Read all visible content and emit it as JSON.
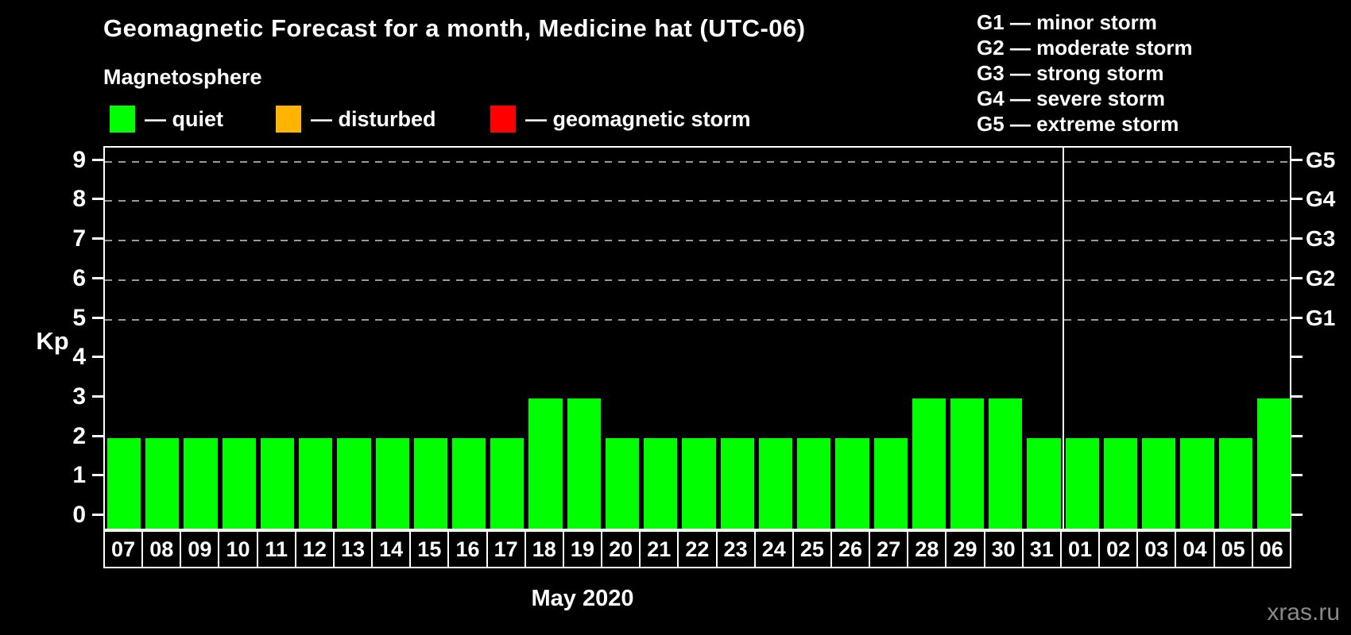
{
  "header": {
    "title": "Geomagnetic Forecast for a month, Medicine hat (UTC-06)"
  },
  "magnetosphere_legend": {
    "title": "Magnetosphere",
    "items": [
      {
        "name": "quiet",
        "label": "— quiet",
        "color": "#00ff00"
      },
      {
        "name": "disturbed",
        "label": "— disturbed",
        "color": "#ffb400"
      },
      {
        "name": "geomagnetic-storm",
        "label": "— geomagnetic storm",
        "color": "#ff0000"
      }
    ]
  },
  "storm_scale_legend": {
    "items": [
      "G1 — minor storm",
      "G2 — moderate storm",
      "G3 — strong storm",
      "G4 — severe storm",
      "G5 — extreme storm"
    ]
  },
  "chart_data": {
    "type": "bar",
    "title": "Geomagnetic Forecast for a month, Medicine hat (UTC-06)",
    "xlabel": "May 2020",
    "ylabel": "Kp",
    "ylim": [
      0,
      9
    ],
    "bar_color": "#00ff00",
    "grid": "horizontal dashed lines at Kp 5-9",
    "legend_position": "top",
    "categories": [
      "07",
      "08",
      "09",
      "10",
      "11",
      "12",
      "13",
      "14",
      "15",
      "16",
      "17",
      "18",
      "19",
      "20",
      "21",
      "22",
      "23",
      "24",
      "25",
      "26",
      "27",
      "28",
      "29",
      "30",
      "31",
      "01",
      "02",
      "03",
      "04",
      "05",
      "06"
    ],
    "values": [
      2,
      2,
      2,
      2,
      2,
      2,
      2,
      2,
      2,
      2,
      2,
      3,
      3,
      2,
      2,
      2,
      2,
      2,
      2,
      2,
      2,
      3,
      3,
      3,
      2,
      2,
      2,
      2,
      2,
      2,
      3
    ],
    "left_ticks": [
      0,
      1,
      2,
      3,
      4,
      5,
      6,
      7,
      8,
      9
    ],
    "right_axis": [
      {
        "label": "G1",
        "kp": 5
      },
      {
        "label": "G2",
        "kp": 6
      },
      {
        "label": "G3",
        "kp": 7
      },
      {
        "label": "G4",
        "kp": 8
      },
      {
        "label": "G5",
        "kp": 9
      }
    ],
    "month_separator_after_index": 24
  },
  "footer": {
    "watermark": "xras.ru"
  }
}
